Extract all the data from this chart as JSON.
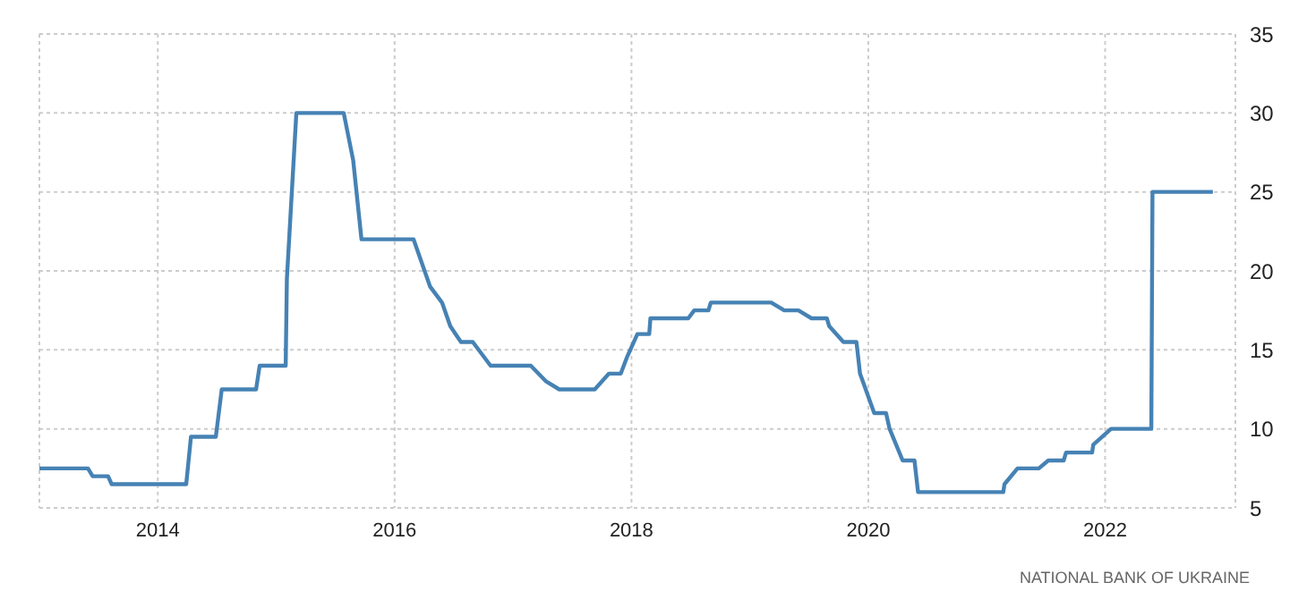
{
  "chart_data": {
    "type": "line",
    "annotations": [
      "NATIONAL BANK OF UKRAINE"
    ],
    "xlim": [
      2013,
      2023.1
    ],
    "xticks": [
      2014,
      2016,
      2018,
      2020,
      2022
    ],
    "ylim": [
      5,
      35
    ],
    "yticks": [
      5,
      10,
      15,
      20,
      25,
      30,
      35
    ],
    "grid": true,
    "legend": false,
    "marker": "none",
    "line_style": "solid",
    "series": [
      {
        "color": "#4682b4",
        "x": [
          2013,
          2013.41,
          2013.45,
          2013.58,
          2013.61,
          2014.24,
          2014.28,
          2014.49,
          2014.54,
          2014.83,
          2014.86,
          2015.08,
          2015.09,
          2015.17,
          2015.57,
          2015.65,
          2015.72,
          2016.16,
          2016.3,
          2016.4,
          2016.47,
          2016.56,
          2016.66,
          2016.81,
          2017.15,
          2017.28,
          2017.39,
          2017.69,
          2017.81,
          2017.91,
          2017.96,
          2018.05,
          2018.15,
          2018.16,
          2018.48,
          2018.53,
          2018.65,
          2018.67,
          2019.18,
          2019.29,
          2019.41,
          2019.52,
          2019.65,
          2019.67,
          2019.79,
          2019.9,
          2019.93,
          2020.05,
          2020.15,
          2020.18,
          2020.29,
          2020.39,
          2020.42,
          2021.14,
          2021.15,
          2021.26,
          2021.44,
          2021.52,
          2021.65,
          2021.67,
          2021.89,
          2021.9,
          2022.05,
          2022.39,
          2022.4,
          2022.91
        ],
        "values": [
          7.5,
          7.5,
          7,
          7,
          6.5,
          6.5,
          9.5,
          9.5,
          12.5,
          12.5,
          14,
          14,
          19.5,
          30,
          30,
          27,
          22,
          22,
          19,
          18,
          16.5,
          15.5,
          15.5,
          14,
          14,
          13,
          12.5,
          12.5,
          13.5,
          13.5,
          14.5,
          16,
          16,
          17,
          17,
          17.5,
          17.5,
          18,
          18,
          17.5,
          17.5,
          17,
          17,
          16.5,
          15.5,
          15.5,
          13.5,
          11,
          11,
          10,
          8,
          8,
          6,
          6,
          6.5,
          7.5,
          7.5,
          8,
          8,
          8.5,
          8.5,
          9,
          10,
          10,
          25,
          25
        ]
      }
    ]
  }
}
